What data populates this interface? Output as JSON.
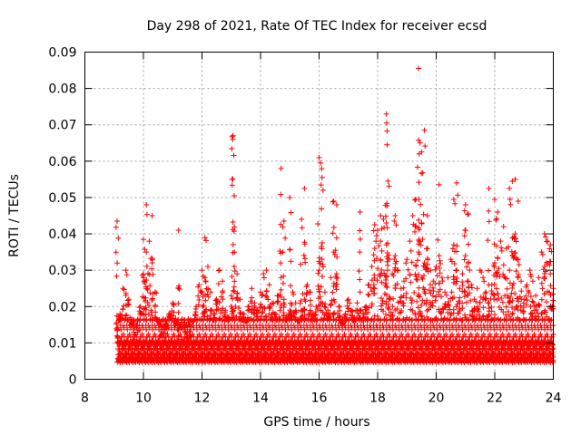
{
  "chart_data": {
    "type": "scatter",
    "title": "Day 298 of 2021, Rate Of TEC Index for receiver ecsd",
    "xlabel": "GPS time / hours",
    "ylabel": "ROTI / TECUs",
    "xlim": [
      8,
      24
    ],
    "ylim": [
      0,
      0.09
    ],
    "x_ticks": [
      "8",
      "10",
      "12",
      "14",
      "16",
      "18",
      "20",
      "22",
      "24"
    ],
    "y_ticks": [
      "0",
      "0.01",
      "0.02",
      "0.03",
      "0.04",
      "0.05",
      "0.06",
      "0.07",
      "0.08",
      "0.09"
    ],
    "grid": true,
    "marker": "+",
    "color": "#ff0000",
    "series": [
      {
        "name": "ROTI",
        "x": [
          9.1,
          9.2,
          9.3,
          9.4,
          9.5,
          9.6,
          9.7,
          9.8,
          9.9,
          10.0,
          10.1,
          10.2,
          10.3,
          10.4,
          10.5,
          10.6,
          10.7,
          10.8,
          10.9,
          11.0,
          11.1,
          11.2,
          11.3,
          11.4,
          11.5,
          11.6,
          11.7,
          11.8,
          11.9,
          12.0,
          12.1,
          12.2,
          12.3,
          12.4,
          12.5,
          12.6,
          12.7,
          12.8,
          12.9,
          13.0,
          13.1,
          13.2,
          13.3,
          13.4,
          13.5,
          13.6,
          13.7,
          13.8,
          13.9,
          14.0,
          14.1,
          14.2,
          14.3,
          14.4,
          14.5,
          14.6,
          14.7,
          14.8,
          14.9,
          15.0,
          15.1,
          15.2,
          15.3,
          15.4,
          15.5,
          15.6,
          15.7,
          15.8,
          15.9,
          16.0,
          16.1,
          16.2,
          16.3,
          16.4,
          16.5,
          16.6,
          16.7,
          16.8,
          16.9,
          17.0,
          17.1,
          17.2,
          17.3,
          17.4,
          17.5,
          17.6,
          17.7,
          17.8,
          17.9,
          18.0,
          18.1,
          18.2,
          18.3,
          18.4,
          18.5,
          18.6,
          18.7,
          18.8,
          18.9,
          19.0,
          19.1,
          19.2,
          19.3,
          19.4,
          19.5,
          19.6,
          19.7,
          19.8,
          19.9,
          20.0,
          20.1,
          20.2,
          20.3,
          20.4,
          20.5,
          20.6,
          20.7,
          20.8,
          20.9,
          21.0,
          21.1,
          21.2,
          21.3,
          21.4,
          21.5,
          21.6,
          21.7,
          21.8,
          21.9,
          22.0,
          22.1,
          22.2,
          22.3,
          22.4,
          22.5,
          22.6,
          22.7,
          22.8,
          22.9,
          23.0,
          23.1,
          23.2,
          23.3,
          23.4,
          23.5,
          23.6,
          23.7,
          23.8,
          23.9,
          24.0,
          9.1,
          10.0,
          10.1,
          10.3,
          11.2,
          12.1,
          13.05,
          13.06,
          13.1,
          14.7,
          14.8,
          15.0,
          15.4,
          15.5,
          16.0,
          16.05,
          16.1,
          16.5,
          16.6,
          17.4,
          17.9,
          18.1,
          18.3,
          18.31,
          18.32,
          18.35,
          18.6,
          19.3,
          19.4,
          19.41,
          19.45,
          19.5,
          19.6,
          19.7,
          20.1,
          20.6,
          20.7,
          21.0,
          21.1,
          21.8,
          22.0,
          22.1,
          22.5,
          22.6,
          22.7,
          22.8,
          23.7,
          23.9
        ],
        "y": [
          0.012,
          0.018,
          0.025,
          0.03,
          0.022,
          0.015,
          0.011,
          0.013,
          0.02,
          0.028,
          0.035,
          0.038,
          0.032,
          0.024,
          0.016,
          0.012,
          0.01,
          0.014,
          0.018,
          0.021,
          0.015,
          0.012,
          0.011,
          0.013,
          0.01,
          0.012,
          0.016,
          0.02,
          0.026,
          0.03,
          0.028,
          0.031,
          0.024,
          0.018,
          0.022,
          0.03,
          0.027,
          0.019,
          0.017,
          0.023,
          0.031,
          0.029,
          0.022,
          0.018,
          0.016,
          0.02,
          0.025,
          0.021,
          0.019,
          0.024,
          0.029,
          0.03,
          0.026,
          0.021,
          0.018,
          0.023,
          0.028,
          0.022,
          0.017,
          0.019,
          0.024,
          0.021,
          0.016,
          0.019,
          0.022,
          0.026,
          0.024,
          0.018,
          0.02,
          0.03,
          0.033,
          0.024,
          0.019,
          0.028,
          0.035,
          0.029,
          0.02,
          0.015,
          0.018,
          0.022,
          0.019,
          0.017,
          0.021,
          0.024,
          0.018,
          0.02,
          0.026,
          0.031,
          0.036,
          0.041,
          0.038,
          0.044,
          0.037,
          0.033,
          0.029,
          0.034,
          0.03,
          0.025,
          0.027,
          0.033,
          0.038,
          0.045,
          0.042,
          0.035,
          0.028,
          0.032,
          0.036,
          0.03,
          0.027,
          0.031,
          0.034,
          0.028,
          0.024,
          0.028,
          0.033,
          0.037,
          0.03,
          0.025,
          0.029,
          0.034,
          0.032,
          0.026,
          0.022,
          0.025,
          0.03,
          0.028,
          0.024,
          0.021,
          0.026,
          0.032,
          0.029,
          0.038,
          0.042,
          0.036,
          0.03,
          0.034,
          0.04,
          0.033,
          0.027,
          0.022,
          0.026,
          0.03,
          0.027,
          0.023,
          0.028,
          0.035,
          0.031,
          0.038,
          0.029,
          0.025,
          0.0435,
          0.0385,
          0.048,
          0.045,
          0.041,
          0.039,
          0.066,
          0.067,
          0.0505,
          0.058,
          0.0435,
          0.05,
          0.044,
          0.0525,
          0.061,
          0.0595,
          0.0555,
          0.049,
          0.048,
          0.046,
          0.0425,
          0.045,
          0.073,
          0.0705,
          0.0645,
          0.0545,
          0.045,
          0.0495,
          0.0855,
          0.0495,
          0.065,
          0.0625,
          0.0685,
          0.045,
          0.0535,
          0.0495,
          0.054,
          0.048,
          0.0455,
          0.0525,
          0.0495,
          0.046,
          0.0525,
          0.0545,
          0.055,
          0.049,
          0.04,
          0.037
        ],
        "dense_band": [
          0.004,
          0.016
        ]
      }
    ]
  }
}
